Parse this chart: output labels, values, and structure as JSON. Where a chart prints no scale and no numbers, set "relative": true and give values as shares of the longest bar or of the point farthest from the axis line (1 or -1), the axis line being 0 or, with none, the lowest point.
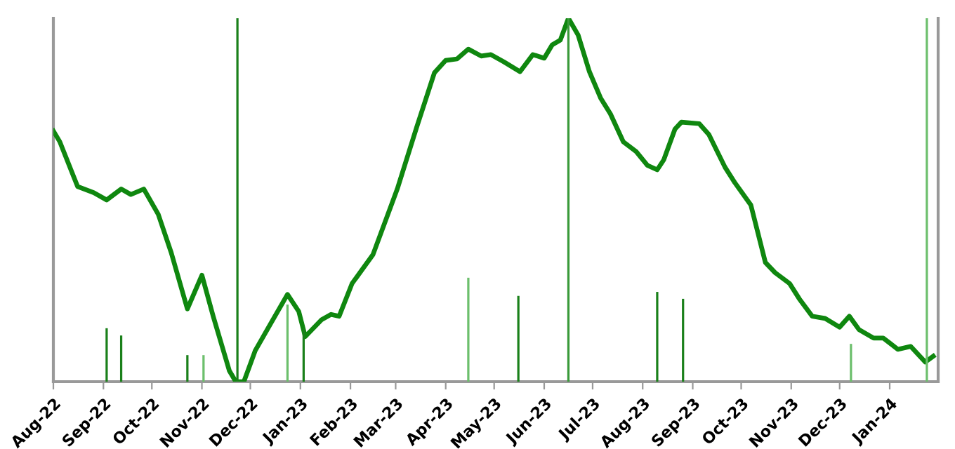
{
  "chart_data": {
    "type": "line",
    "relative": true,
    "grid": false,
    "xlim": [
      "2022-08-01",
      "2024-01-31"
    ],
    "xticks": [
      {
        "value": "2022-08-01",
        "label": "Aug-22"
      },
      {
        "value": "2022-09-01",
        "label": "Sep-22"
      },
      {
        "value": "2022-10-01",
        "label": "Oct-22"
      },
      {
        "value": "2022-11-01",
        "label": "Nov-22"
      },
      {
        "value": "2022-12-01",
        "label": "Dec-22"
      },
      {
        "value": "2023-01-01",
        "label": "Jan-23"
      },
      {
        "value": "2023-02-01",
        "label": "Feb-23"
      },
      {
        "value": "2023-03-01",
        "label": "Mar-23"
      },
      {
        "value": "2023-04-01",
        "label": "Apr-23"
      },
      {
        "value": "2023-05-01",
        "label": "May-23"
      },
      {
        "value": "2023-06-01",
        "label": "Jun-23"
      },
      {
        "value": "2023-07-01",
        "label": "Jul-23"
      },
      {
        "value": "2023-08-01",
        "label": "Aug-23"
      },
      {
        "value": "2023-09-01",
        "label": "Sep-23"
      },
      {
        "value": "2023-10-01",
        "label": "Oct-23"
      },
      {
        "value": "2023-11-01",
        "label": "Nov-23"
      },
      {
        "value": "2023-12-01",
        "label": "Dec-23"
      },
      {
        "value": "2024-01-01",
        "label": "Jan-24"
      }
    ],
    "series": [
      {
        "type": "bar",
        "x": [
          "2022-09-03",
          "2022-09-12",
          "2022-10-23",
          "2022-11-02",
          "2022-11-23",
          "2022-12-24",
          "2023-01-03",
          "2023-04-15",
          "2023-05-16",
          "2023-06-16",
          "2023-08-10",
          "2023-08-26",
          "2023-12-08",
          "2024-01-24"
        ],
        "values": [
          0.147,
          0.127,
          0.073,
          0.073,
          1,
          0.212,
          0.147,
          0.286,
          0.236,
          1,
          0.247,
          0.228,
          0.104,
          1
        ],
        "colors": [
          "#1a801a",
          "#1a801a",
          "#1a801a",
          "#6cbf6c",
          "#1a801a",
          "#6cbf6c",
          "#1a801a",
          "#6cbf6c",
          "#1a801a",
          "#3a9a3a",
          "#1a801a",
          "#1a801a",
          "#6cbf6c",
          "#6cbf6c"
        ]
      },
      {
        "color": "#0f870f",
        "x": [
          "2022-08-01",
          "2022-08-05",
          "2022-08-16",
          "2022-08-26",
          "2022-09-03",
          "2022-09-12",
          "2022-09-18",
          "2022-09-26",
          "2022-10-05",
          "2022-10-13",
          "2022-10-23",
          "2022-11-01",
          "2022-11-08",
          "2022-11-18",
          "2022-11-22",
          "2022-11-27",
          "2022-12-04",
          "2022-12-13",
          "2022-12-24",
          "2022-12-31",
          "2023-01-04",
          "2023-01-14",
          "2023-01-20",
          "2023-01-25",
          "2023-02-02",
          "2023-02-15",
          "2023-03-02",
          "2023-03-14",
          "2023-03-25",
          "2023-04-01",
          "2023-04-08",
          "2023-04-15",
          "2023-04-23",
          "2023-04-29",
          "2023-05-07",
          "2023-05-17",
          "2023-05-25",
          "2023-06-01",
          "2023-06-06",
          "2023-06-11",
          "2023-06-16",
          "2023-06-22",
          "2023-06-29",
          "2023-07-06",
          "2023-07-12",
          "2023-07-20",
          "2023-07-28",
          "2023-08-04",
          "2023-08-10",
          "2023-08-14",
          "2023-08-21",
          "2023-08-25",
          "2023-09-05",
          "2023-09-11",
          "2023-09-21",
          "2023-09-27",
          "2023-10-07",
          "2023-10-16",
          "2023-10-22",
          "2023-10-31",
          "2023-11-06",
          "2023-11-14",
          "2023-11-22",
          "2023-12-01",
          "2023-12-07",
          "2023-12-13",
          "2023-12-22",
          "2023-12-28",
          "2024-01-06",
          "2024-01-14",
          "2024-01-23",
          "2024-01-28"
        ],
        "values": [
          0.69,
          0.66,
          0.537,
          0.52,
          0.5,
          0.53,
          0.515,
          0.53,
          0.46,
          0.355,
          0.2,
          0.293,
          0.18,
          0.03,
          0,
          0,
          0.085,
          0.155,
          0.24,
          0.193,
          0.124,
          0.17,
          0.185,
          0.18,
          0.27,
          0.35,
          0.53,
          0.7,
          0.85,
          0.884,
          0.888,
          0.915,
          0.896,
          0.9,
          0.88,
          0.853,
          0.9,
          0.89,
          0.927,
          0.94,
          1,
          0.954,
          0.853,
          0.78,
          0.737,
          0.66,
          0.633,
          0.595,
          0.583,
          0.61,
          0.695,
          0.714,
          0.71,
          0.68,
          0.59,
          0.548,
          0.486,
          0.328,
          0.3,
          0.27,
          0.228,
          0.18,
          0.174,
          0.15,
          0.18,
          0.143,
          0.12,
          0.12,
          0.089,
          0.097,
          0.054,
          0.07
        ]
      }
    ]
  }
}
